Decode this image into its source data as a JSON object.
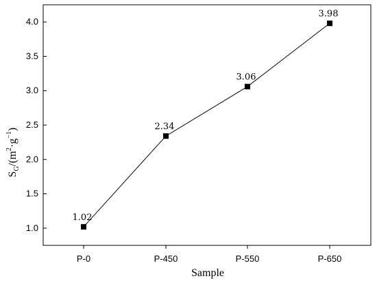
{
  "chart_data": {
    "type": "line",
    "categories": [
      "P-0",
      "P-450",
      "P-550",
      "P-650"
    ],
    "series": [
      {
        "values": [
          1.02,
          2.34,
          3.06,
          3.98
        ],
        "marker": "square",
        "color": "#000000"
      }
    ],
    "data_labels": [
      "1.02",
      "2.34",
      "3.06",
      "3.98"
    ],
    "xlabel": "Sample",
    "ylabel": {
      "main": "S",
      "subscript": "G",
      "rest": "/(m",
      "superscript1": "2",
      "mid": "·g",
      "superscript2": "−1",
      "close": ")"
    },
    "ylim": [
      0.75,
      4.25
    ],
    "yticks": [
      "1.0",
      "1.5",
      "2.0",
      "2.5",
      "3.0",
      "3.5",
      "4.0"
    ],
    "grid": false,
    "legend": false
  }
}
